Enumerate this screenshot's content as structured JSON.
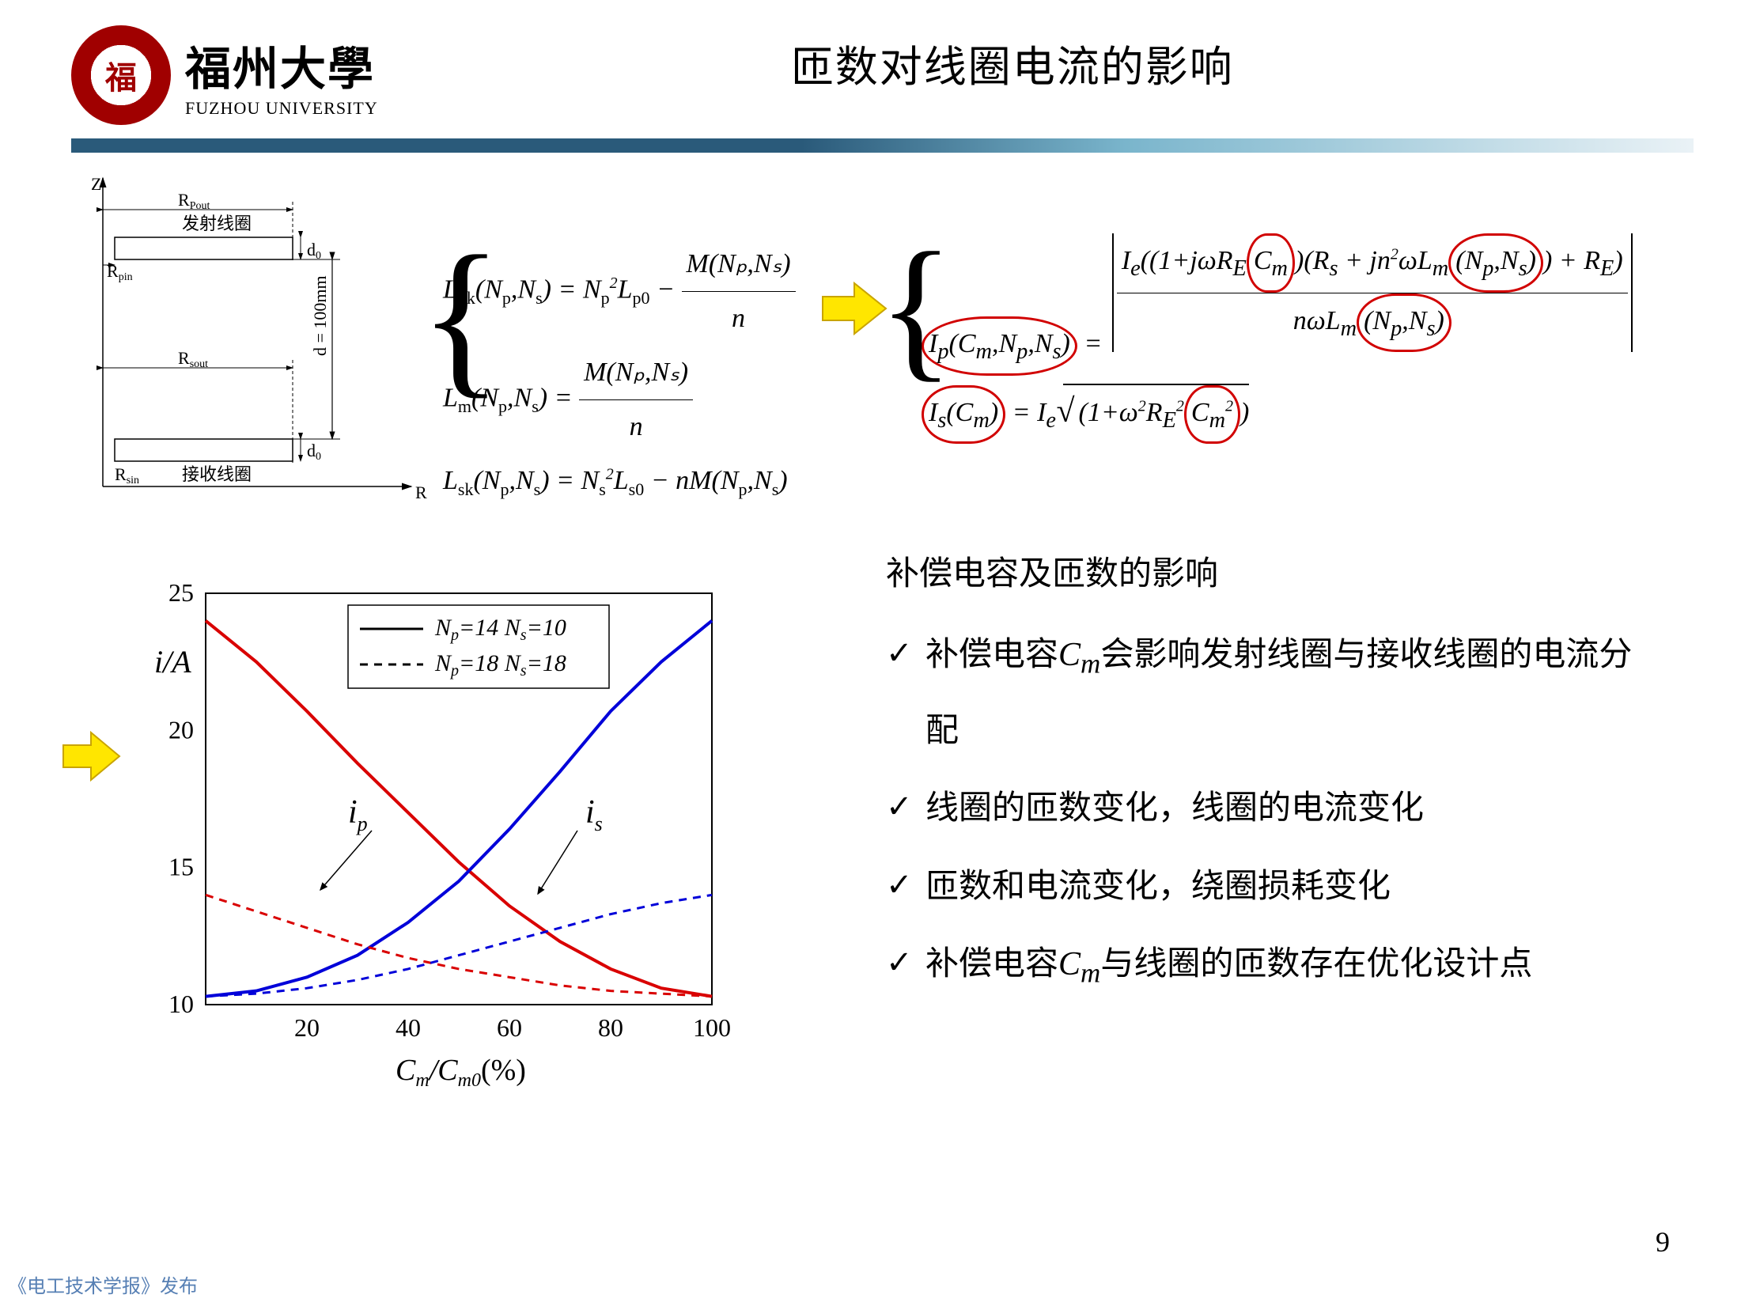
{
  "header": {
    "logo_text": "福",
    "univ_cn": "福州大學",
    "univ_en": "FUZHOU UNIVERSITY",
    "title": "匝数对线圈电流的影响"
  },
  "coil_diagram": {
    "z_label": "Z",
    "r_label": "R",
    "rpout": "R",
    "rpout_sub": "Pout",
    "rpin": "R",
    "rpin_sub": "pin",
    "rsout": "R",
    "rsout_sub": "sout",
    "rsin": "R",
    "rsin_sub": "sin",
    "tx_coil": "发射线圈",
    "rx_coil": "接收线圈",
    "d0_1": "d",
    "d0_1_sub": "0",
    "d0_2": "d",
    "d0_2_sub": "0",
    "d_label": "d = 100mm"
  },
  "eq1": {
    "line1_pre": "L",
    "line1_sub1": "pk",
    "line1_args": "(N",
    "line1_argsub1": "p",
    "line1_argmid": ",N",
    "line1_argsub2": "s",
    "line1_eq": ") = N",
    "line1_sqsub": "p",
    "line1_sq": "2",
    "line1_l": "L",
    "line1_lsub": "p0",
    "line1_minus": " − ",
    "line1_frac_num": "M(Nₚ,Nₛ)",
    "line1_frac_den": "n",
    "line2_pre": "L",
    "line2_sub1": "m",
    "line2_args": "(N",
    "line2_argsub1": "p",
    "line2_argmid": ",N",
    "line2_argsub2": "s",
    "line2_eq": ") = ",
    "line2_frac_num": "M(Nₚ,Nₛ)",
    "line2_frac_den": "n",
    "line3_pre": "L",
    "line3_sub1": "sk",
    "line3_args": "(N",
    "line3_argsub1": "p",
    "line3_argmid": ",N",
    "line3_argsub2": "s",
    "line3_eq": ") = N",
    "line3_sqsub": "s",
    "line3_sq": "2",
    "line3_l": "L",
    "line3_lsub": "s0",
    "line3_minus": " − nM(N",
    "line3_endsub1": "p",
    "line3_endmid": ",N",
    "line3_endsub2": "s",
    "line3_end": ")"
  },
  "eq2": {
    "ip_left": "I",
    "ip_leftsub": "p",
    "ip_args": "(C",
    "ip_argsub1": "m",
    "ip_argmid1": ",N",
    "ip_argsub2": "p",
    "ip_argmid2": ",N",
    "ip_argsub3": "s",
    "ip_argsend": ")",
    "ip_eq": " = ",
    "ip_num_a": "I",
    "ip_num_asub": "e",
    "ip_num_b": "((1+jωR",
    "ip_num_bsub": "E",
    "ip_num_cm": "C",
    "ip_num_cmsub": "m",
    "ip_num_c": ")(R",
    "ip_num_csub": "s",
    "ip_num_d": " + jn",
    "ip_num_dsup": "2",
    "ip_num_e": "ωL",
    "ip_num_esub": "m",
    "ip_num_npns": "(N",
    "ip_num_np": "p",
    "ip_num_mid": ",N",
    "ip_num_ns": "s",
    "ip_num_close": ")",
    "ip_num_f": ") + R",
    "ip_num_fsub": "E",
    "ip_num_g": ")",
    "ip_den_a": "nωL",
    "ip_den_asub": "m",
    "ip_den_npns": "(N",
    "ip_den_np": "p",
    "ip_den_mid": ",N",
    "ip_den_ns": "s",
    "ip_den_close": ")",
    "is_left": "I",
    "is_leftsub": "s",
    "is_args": "(C",
    "is_argsub": "m",
    "is_argsend": ")",
    "is_eq": " = I",
    "is_esub": "e",
    "is_rad_a": "(1+ω",
    "is_rad_asup": "2",
    "is_rad_b": "R",
    "is_rad_bsub": "E",
    "is_rad_bsup": "2",
    "is_rad_cm": "C",
    "is_rad_cmsub": "m",
    "is_rad_cmsup": "2",
    "is_rad_close": ")"
  },
  "chart": {
    "type": "line",
    "ylabel": "i/A",
    "xlabel_pre": "C",
    "xlabel_sub1": "m",
    "xlabel_mid": "/C",
    "xlabel_sub2": "m0",
    "xlabel_unit": "(%)",
    "xlim": [
      0,
      100
    ],
    "ylim": [
      10,
      25
    ],
    "xticks": [
      20,
      40,
      60,
      80,
      100
    ],
    "yticks": [
      10,
      15,
      20,
      25
    ],
    "legend_line1_a": "N",
    "legend_line1_asub": "p",
    "legend_line1_aval": "=14  ",
    "legend_line1_b": "N",
    "legend_line1_bsub": "s",
    "legend_line1_bval": "=10",
    "legend_line2_a": "N",
    "legend_line2_asub": "p",
    "legend_line2_aval": "=18  ",
    "legend_line2_b": "N",
    "legend_line2_bsub": "s",
    "legend_line2_bval": "=18",
    "ip_label": "i",
    "ip_labelsub": "p",
    "is_label": "i",
    "is_labelsub": "s",
    "series_ip_solid_color": "#d90000",
    "series_is_solid_color": "#0000d9",
    "series_ip_dash_color": "#d90000",
    "series_is_dash_color": "#0000d9",
    "line_width_solid": 4,
    "line_width_dash": 3,
    "grid_color": "#888888",
    "background": "#ffffff",
    "series_ip_solid": [
      [
        0,
        24
      ],
      [
        10,
        22.5
      ],
      [
        20,
        20.7
      ],
      [
        30,
        18.8
      ],
      [
        40,
        17
      ],
      [
        50,
        15.2
      ],
      [
        60,
        13.6
      ],
      [
        70,
        12.3
      ],
      [
        80,
        11.3
      ],
      [
        90,
        10.6
      ],
      [
        100,
        10.3
      ]
    ],
    "series_is_solid": [
      [
        0,
        10.3
      ],
      [
        10,
        10.5
      ],
      [
        20,
        11.0
      ],
      [
        30,
        11.8
      ],
      [
        40,
        13.0
      ],
      [
        50,
        14.5
      ],
      [
        60,
        16.4
      ],
      [
        70,
        18.5
      ],
      [
        80,
        20.7
      ],
      [
        90,
        22.5
      ],
      [
        100,
        24.0
      ]
    ],
    "series_ip_dash": [
      [
        0,
        14.0
      ],
      [
        10,
        13.4
      ],
      [
        20,
        12.8
      ],
      [
        30,
        12.2
      ],
      [
        40,
        11.7
      ],
      [
        50,
        11.3
      ],
      [
        60,
        11.0
      ],
      [
        70,
        10.7
      ],
      [
        80,
        10.5
      ],
      [
        90,
        10.4
      ],
      [
        100,
        10.3
      ]
    ],
    "series_is_dash": [
      [
        0,
        10.3
      ],
      [
        10,
        10.4
      ],
      [
        20,
        10.6
      ],
      [
        30,
        10.9
      ],
      [
        40,
        11.3
      ],
      [
        50,
        11.8
      ],
      [
        60,
        12.3
      ],
      [
        70,
        12.8
      ],
      [
        80,
        13.3
      ],
      [
        90,
        13.7
      ],
      [
        100,
        14.0
      ]
    ]
  },
  "bullets": {
    "heading": "补偿电容及匝数的影响",
    "item1_a": "补偿电容",
    "item1_b": "C",
    "item1_bsub": "m",
    "item1_c": "会影响发射线圈与接收线圈的电流分配",
    "item2": "线圈的匝数变化，线圈的电流变化",
    "item3": "匝数和电流变化，绕圈损耗变化",
    "item4_a": "补偿电容",
    "item4_b": "C",
    "item4_bsub": "m",
    "item4_c": "与线圈的匝数存在优化设计点"
  },
  "page_num": "9",
  "watermark": "《电工技术学报》发布",
  "colors": {
    "highlight_red": "#d10000",
    "arrow_fill": "#ffe600",
    "arrow_stroke": "#c9a400",
    "divider_start": "#2a5a7a",
    "divider_end": "#eaf2f6"
  }
}
